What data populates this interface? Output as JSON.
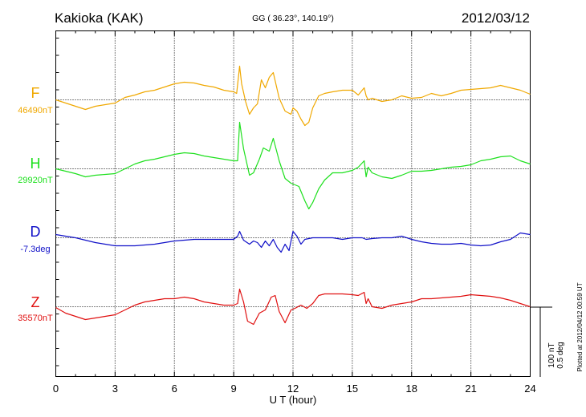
{
  "header": {
    "station": "Kakioka (KAK)",
    "coords": "GG ( 36.23°, 140.19°)",
    "date": "2012/03/12"
  },
  "footer": {
    "plotted": "Plotted at 2012/04/12 00:59 UT"
  },
  "scale": {
    "nt": "100 nT",
    "deg": "0.5 deg"
  },
  "chart_data": {
    "type": "line",
    "title": "Kakioka (KAK)",
    "xlabel": "U T (hour)",
    "ylabel": "",
    "xlim": [
      0,
      24
    ],
    "xticks": [
      "0",
      "3",
      "6",
      "9",
      "12",
      "15",
      "18",
      "21",
      "24"
    ],
    "grid": true,
    "colors": {
      "F": "#f0a800",
      "H": "#1ee01e",
      "D": "#1010c8",
      "Z": "#e01010"
    },
    "series": [
      {
        "name": "F",
        "baseline_label": "46490nT",
        "baseline": 0,
        "x": [
          0,
          0.5,
          1,
          1.5,
          2,
          2.5,
          3,
          3.5,
          4,
          4.5,
          5,
          5.5,
          6,
          6.5,
          7,
          7.5,
          8,
          8.5,
          9,
          9.15,
          9.3,
          9.4,
          9.6,
          9.8,
          10,
          10.2,
          10.4,
          10.6,
          10.8,
          11,
          11.3,
          11.6,
          11.9,
          12,
          12.2,
          12.4,
          12.6,
          12.8,
          13,
          13.3,
          13.6,
          14,
          14.5,
          15,
          15.3,
          15.6,
          15.7,
          15.8,
          16,
          16.5,
          17,
          17.5,
          18,
          18.5,
          19,
          19.5,
          20,
          20.5,
          21,
          21.5,
          22,
          22.5,
          23,
          23.5,
          24
        ],
        "values": [
          0,
          -4,
          -8,
          -12,
          -8,
          -6,
          -4,
          3,
          6,
          10,
          12,
          16,
          20,
          22,
          21,
          18,
          16,
          12,
          10,
          8,
          42,
          20,
          -2,
          -18,
          -10,
          -5,
          25,
          15,
          28,
          34,
          2,
          -14,
          -18,
          -10,
          -14,
          -24,
          -32,
          -28,
          -10,
          5,
          8,
          10,
          12,
          12,
          6,
          15,
          5,
          0,
          2,
          -2,
          0,
          5,
          2,
          3,
          8,
          5,
          8,
          12,
          13,
          14,
          15,
          18,
          15,
          12,
          7
        ]
      },
      {
        "name": "H",
        "baseline_label": "29920nT",
        "baseline": 0,
        "x": [
          0,
          0.5,
          1,
          1.5,
          2,
          2.5,
          3,
          3.5,
          4,
          4.5,
          5,
          5.5,
          6,
          6.5,
          7,
          7.5,
          8,
          8.5,
          9,
          9.2,
          9.3,
          9.5,
          9.8,
          10,
          10.3,
          10.5,
          10.8,
          11,
          11.3,
          11.6,
          11.9,
          12.1,
          12.3,
          12.6,
          12.8,
          13,
          13.3,
          13.6,
          14,
          14.5,
          15,
          15.3,
          15.6,
          15.7,
          15.8,
          16,
          16.5,
          17,
          17.5,
          18,
          18.5,
          19,
          19.5,
          20,
          20.5,
          21,
          21.5,
          22,
          22.5,
          23,
          23.5,
          24
        ],
        "values": [
          0,
          -3,
          -6,
          -10,
          -8,
          -7,
          -6,
          0,
          6,
          10,
          12,
          15,
          18,
          20,
          19,
          16,
          14,
          12,
          10,
          10,
          58,
          25,
          -8,
          -5,
          12,
          26,
          22,
          38,
          10,
          -12,
          -18,
          -20,
          -22,
          -40,
          -50,
          -42,
          -25,
          -14,
          -5,
          -5,
          -2,
          2,
          10,
          -10,
          2,
          -5,
          -10,
          -12,
          -8,
          -3,
          -3,
          -2,
          0,
          2,
          3,
          5,
          10,
          12,
          15,
          16,
          10,
          6
        ]
      },
      {
        "name": "D",
        "baseline_label": "-7.3deg",
        "baseline": 0,
        "x": [
          0,
          0.5,
          1,
          1.5,
          2,
          2.5,
          3,
          3.5,
          4,
          4.5,
          5,
          5.5,
          6,
          6.5,
          7,
          7.5,
          8,
          8.5,
          9,
          9.2,
          9.3,
          9.5,
          9.8,
          10,
          10.2,
          10.4,
          10.6,
          10.8,
          11,
          11.2,
          11.4,
          11.6,
          11.8,
          12,
          12.2,
          12.4,
          12.6,
          12.8,
          13,
          13.5,
          14,
          14.5,
          15,
          15.5,
          15.7,
          16,
          16.5,
          17,
          17.5,
          18,
          18.5,
          19,
          19.5,
          20,
          20.5,
          21,
          21.5,
          22,
          22.5,
          23,
          23.5,
          24
        ],
        "values": [
          4,
          2,
          0,
          -3,
          -6,
          -8,
          -10,
          -10,
          -10,
          -9,
          -8,
          -6,
          -4,
          -3,
          -2,
          -2,
          -2,
          -2,
          -2,
          2,
          8,
          -3,
          -8,
          -4,
          -6,
          -12,
          -4,
          -10,
          -2,
          -12,
          -18,
          -8,
          -16,
          8,
          2,
          -8,
          -2,
          -1,
          0,
          0,
          0,
          -2,
          0,
          0,
          -2,
          -1,
          0,
          0,
          2,
          -2,
          -5,
          -7,
          -8,
          -8,
          -7,
          -9,
          -10,
          -9,
          -5,
          -2,
          6,
          4
        ]
      },
      {
        "name": "Z",
        "baseline_label": "35570nT",
        "baseline": 0,
        "x": [
          0,
          0.5,
          1,
          1.5,
          2,
          2.5,
          3,
          3.5,
          4,
          4.5,
          5,
          5.5,
          6,
          6.5,
          7,
          7.5,
          8,
          8.5,
          9,
          9.2,
          9.3,
          9.5,
          9.7,
          10,
          10.3,
          10.6,
          10.9,
          11.1,
          11.3,
          11.6,
          11.9,
          12.1,
          12.4,
          12.7,
          13,
          13.3,
          13.6,
          14,
          14.5,
          15,
          15.3,
          15.6,
          15.7,
          15.8,
          16,
          16.5,
          17,
          17.5,
          18,
          18.5,
          19,
          19.5,
          20,
          20.5,
          21,
          21.5,
          22,
          22.5,
          23,
          23.5,
          24
        ],
        "values": [
          -1,
          -8,
          -12,
          -16,
          -14,
          -12,
          -10,
          -4,
          2,
          6,
          8,
          10,
          10,
          12,
          10,
          6,
          4,
          2,
          2,
          4,
          22,
          6,
          -18,
          -22,
          -8,
          -4,
          12,
          14,
          -6,
          -20,
          -4,
          -2,
          2,
          -2,
          4,
          14,
          16,
          16,
          16,
          15,
          14,
          18,
          4,
          10,
          0,
          -2,
          2,
          4,
          6,
          10,
          10,
          11,
          12,
          13,
          15,
          14,
          13,
          11,
          8,
          4,
          0
        ]
      }
    ]
  }
}
